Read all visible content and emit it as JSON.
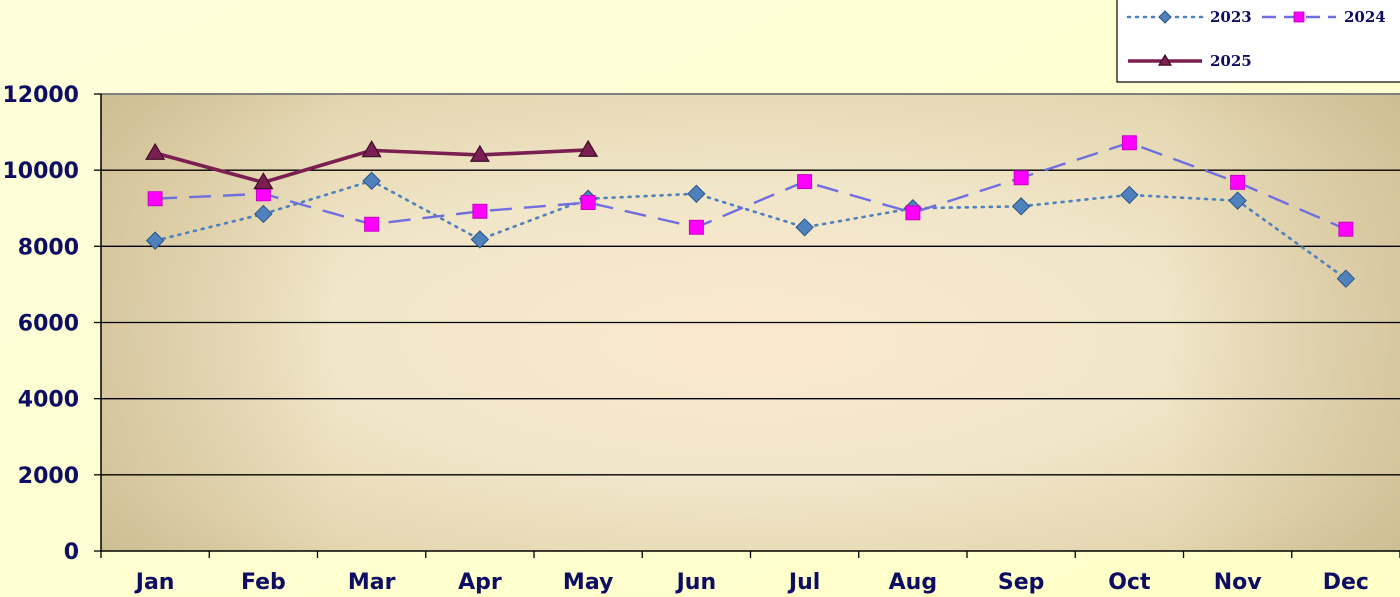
{
  "chart_data": {
    "type": "line",
    "title": "",
    "xlabel": "",
    "ylabel": "",
    "categories": [
      "Jan",
      "Feb",
      "Mar",
      "Apr",
      "May",
      "Jun",
      "Jul",
      "Aug",
      "Sep",
      "Oct",
      "Nov",
      "Dec"
    ],
    "ylim": [
      0,
      12000
    ],
    "yticks": [
      0,
      2000,
      4000,
      6000,
      8000,
      10000,
      12000
    ],
    "grid": true,
    "legend_position": "top-right",
    "series": [
      {
        "name": "2023",
        "values": [
          8150,
          8850,
          9720,
          8180,
          9250,
          9380,
          8500,
          9000,
          9050,
          9350,
          9200,
          7150
        ],
        "color": "#4f81bd",
        "line_style": "dotted",
        "marker": "diamond"
      },
      {
        "name": "2024",
        "values": [
          9250,
          9380,
          8580,
          8920,
          9150,
          8500,
          9700,
          8880,
          9800,
          10720,
          9680,
          8450
        ],
        "color": "#6f6fe0",
        "marker_color": "#ff00ff",
        "line_style": "dashed",
        "marker": "square"
      },
      {
        "name": "2025",
        "values": [
          10450,
          9680,
          10520,
          10400,
          10530,
          null,
          null,
          null,
          null,
          null,
          null,
          null
        ],
        "color": "#7b1f52",
        "line_style": "solid",
        "marker": "triangle"
      }
    ]
  }
}
